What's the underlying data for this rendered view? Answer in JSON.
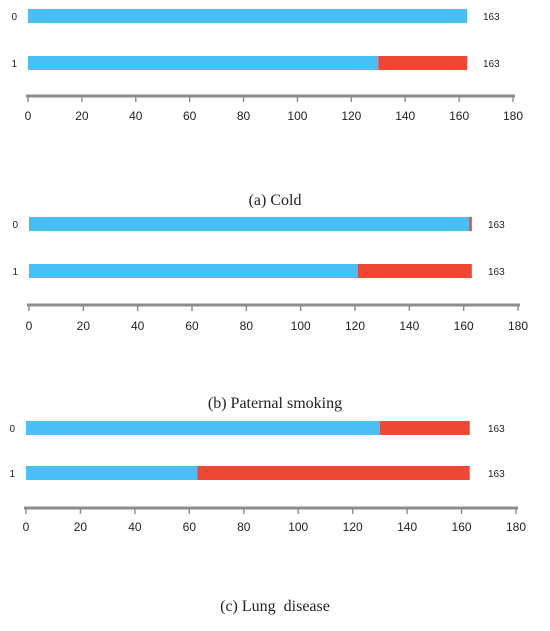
{
  "colors": {
    "blue": "#49bff5",
    "red": "#ef4733",
    "axis": "#8c8c8c",
    "text": "#222222"
  },
  "chart_data": [
    {
      "type": "bar",
      "orientation": "horizontal",
      "stacked": true,
      "caption": "(a) Cold",
      "categories": [
        "0",
        "1"
      ],
      "series": [
        {
          "color": "#49bff5",
          "values": [
            163,
            130
          ]
        },
        {
          "color": "#ef4733",
          "values": [
            0,
            33
          ]
        }
      ],
      "totals": [
        "163",
        "163"
      ],
      "xlim": [
        0,
        180
      ],
      "xticks": [
        0,
        20,
        40,
        60,
        80,
        100,
        120,
        140,
        160,
        180
      ],
      "grid": false
    },
    {
      "type": "bar",
      "orientation": "horizontal",
      "stacked": true,
      "caption": "(b) Paternal smoking",
      "categories": [
        "0",
        "1"
      ],
      "series": [
        {
          "color": "#49bff5",
          "values": [
            162,
            121
          ]
        },
        {
          "color": "#ef4733",
          "values": [
            1,
            42
          ]
        }
      ],
      "totals": [
        "163",
        "163"
      ],
      "xlim": [
        0,
        180
      ],
      "xticks": [
        0,
        20,
        40,
        60,
        80,
        100,
        120,
        140,
        160,
        180
      ],
      "grid": false
    },
    {
      "type": "bar",
      "orientation": "horizontal",
      "stacked": true,
      "caption": "(c) Lung  disease",
      "categories": [
        "0",
        "1"
      ],
      "series": [
        {
          "color": "#49bff5",
          "values": [
            130,
            63
          ]
        },
        {
          "color": "#ef4733",
          "values": [
            33,
            100
          ]
        }
      ],
      "totals": [
        "163",
        "163"
      ],
      "xlim": [
        0,
        180
      ],
      "xticks": [
        0,
        20,
        40,
        60,
        80,
        100,
        120,
        140,
        160,
        180
      ],
      "grid": false
    }
  ]
}
